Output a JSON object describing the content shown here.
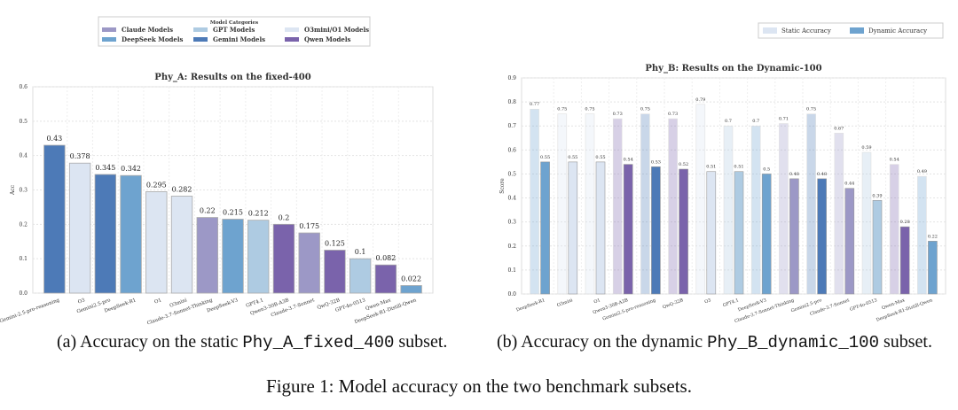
{
  "colors": {
    "claude": "#9c98c6",
    "deepseek": "#6ea3cf",
    "gpt": "#aecbe2",
    "o": "#dce5f2",
    "gemini": "#4d7ab7",
    "qwen": "#7a63ab"
  },
  "legend_left": {
    "title": "Model Categories",
    "items": [
      {
        "key": "claude",
        "label": "Claude Models"
      },
      {
        "key": "gpt",
        "label": "GPT Models"
      },
      {
        "key": "o",
        "label": "O3mini/O1 Models"
      },
      {
        "key": "deepseek",
        "label": "DeepSeek Models"
      },
      {
        "key": "gemini",
        "label": "Gemini Models"
      },
      {
        "key": "qwen",
        "label": "Qwen Models"
      }
    ]
  },
  "legend_right": {
    "items": [
      {
        "label": "Static Accuracy"
      },
      {
        "label": "Dynamic Accuracy"
      }
    ]
  },
  "chart_data": [
    {
      "type": "bar",
      "title": "Phy_A: Results on the fixed-400",
      "ylabel": "Acc",
      "xlabel": "",
      "ylim": [
        0,
        0.6
      ],
      "yticks": [
        "0.0",
        "0.1",
        "0.2",
        "0.3",
        "0.4",
        "0.5",
        "0.6"
      ],
      "grid": true,
      "categories": [
        "Gemini-2.5-pro-reasoning",
        "O3",
        "Gemini2.5-pro",
        "DeepSeek-R1",
        "O1",
        "O3mini",
        "Claude-3.7-Sonnet-Thinking",
        "DeepSeek-V3",
        "GPT4.1",
        "Qwen3-30B-A3B",
        "Claude-3.7-Sonnet",
        "QwQ-32B",
        "GPT-4o-0513",
        "Qwen-Max",
        "DeepSeek-R1-Distill-Qwen"
      ],
      "groups": [
        "gemini",
        "o",
        "gemini",
        "deepseek",
        "o",
        "o",
        "claude",
        "deepseek",
        "gpt",
        "qwen",
        "claude",
        "qwen",
        "gpt",
        "qwen",
        "deepseek"
      ],
      "values": [
        0.43,
        0.378,
        0.345,
        0.342,
        0.295,
        0.282,
        0.22,
        0.215,
        0.212,
        0.2,
        0.175,
        0.125,
        0.1,
        0.082,
        0.022
      ],
      "labels": [
        "0.43",
        "0.378",
        "0.345",
        "0.342",
        "0.295",
        "0.282",
        "0.22",
        "0.215",
        "0.212",
        "0.2",
        "0.175",
        "0.125",
        "0.1",
        "0.082",
        "0.022"
      ]
    },
    {
      "type": "bar",
      "title": "Phy_B: Results on the Dynamic-100",
      "ylabel": "Score",
      "xlabel": "",
      "ylim": [
        0,
        0.9
      ],
      "yticks": [
        "0.0",
        "0.1",
        "0.2",
        "0.3",
        "0.4",
        "0.5",
        "0.6",
        "0.7",
        "0.8",
        "0.9"
      ],
      "grid": true,
      "legend": "top-right",
      "categories": [
        "DeepSeek-R1",
        "O3mini",
        "O1",
        "Qwen3-30B-A3B",
        "Gemini2.5-pro-reasoning",
        "QwQ-32B",
        "O3",
        "GPT4.1",
        "DeepSeek-V3",
        "Claude-3.7-Sonnet-Thinking",
        "Gemini2.5-pro",
        "Claude-3.7-Sonnet",
        "GPT-4o-0513",
        "Qwen-Max",
        "DeepSeek-R1-Distill-Qwen"
      ],
      "groups": [
        "deepseek",
        "o",
        "o",
        "qwen",
        "gemini",
        "qwen",
        "o",
        "gpt",
        "deepseek",
        "claude",
        "gemini",
        "claude",
        "gpt",
        "qwen",
        "deepseek"
      ],
      "series": [
        {
          "name": "Static Accuracy",
          "values": [
            0.77,
            0.75,
            0.75,
            0.73,
            0.75,
            0.73,
            0.79,
            0.7,
            0.7,
            0.71,
            0.75,
            0.67,
            0.59,
            0.54,
            0.49
          ],
          "labels": [
            "0.77",
            "0.75",
            "0.75",
            "0.73",
            "0.75",
            "0.73",
            "0.79",
            "0.7",
            "0.7",
            "0.71",
            "0.75",
            "0.67",
            "0.59",
            "0.54",
            "0.49"
          ]
        },
        {
          "name": "Dynamic Accuracy",
          "values": [
            0.55,
            0.55,
            0.55,
            0.54,
            0.53,
            0.52,
            0.51,
            0.51,
            0.5,
            0.48,
            0.48,
            0.44,
            0.39,
            0.28,
            0.22
          ],
          "labels": [
            "0.55",
            "0.55",
            "0.55",
            "0.54",
            "0.53",
            "0.52",
            "0.51",
            "0.51",
            "0.5",
            "0.48",
            "0.48",
            "0.44",
            "0.39",
            "0.28",
            "0.22"
          ]
        }
      ]
    }
  ],
  "captions": {
    "a_pre": "(a) Accuracy on the static ",
    "a_code": "Phy_A_fixed_400",
    "a_post": " subset.",
    "b_pre": "(b) Accuracy on the dynamic ",
    "b_code": "Phy_B_dynamic_100",
    "b_post": " subset.",
    "figure": "Figure 1: Model accuracy on the two benchmark subsets."
  }
}
